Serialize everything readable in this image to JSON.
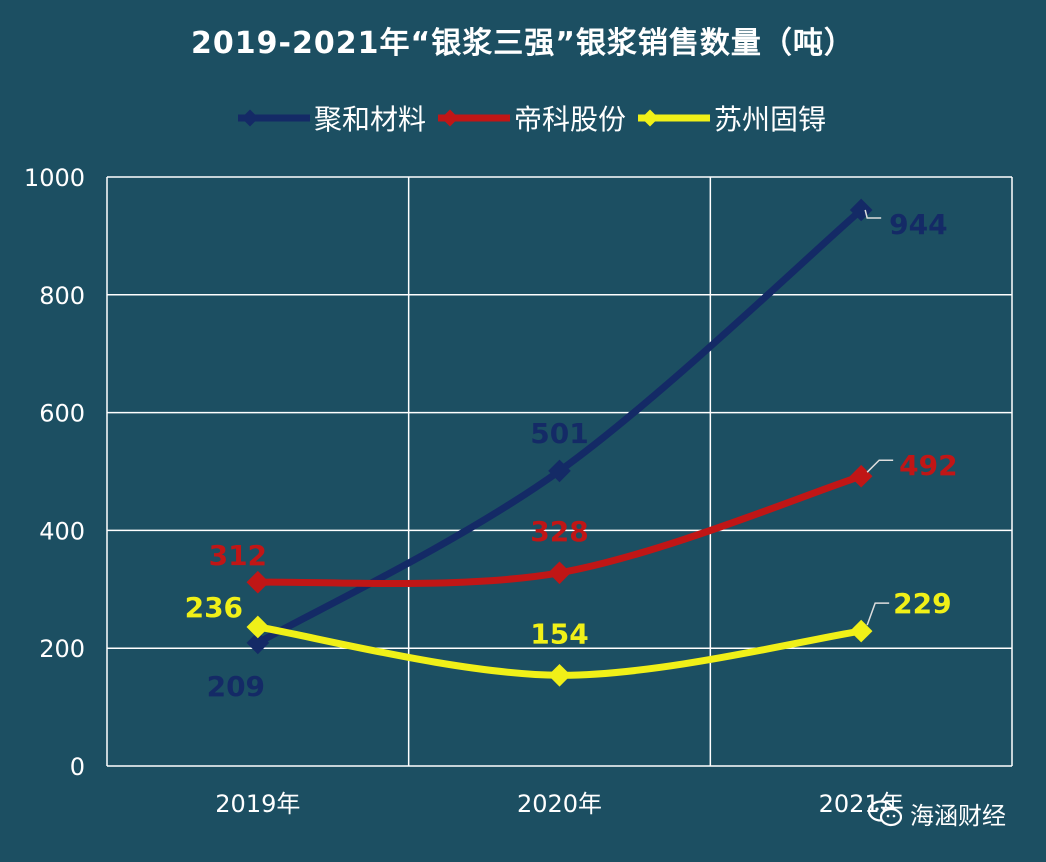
{
  "title": "2019-2021年“银浆三强”银浆销售数量（吨）",
  "legend": [
    {
      "label": "聚和材料",
      "color": "#142a66"
    },
    {
      "label": "帝科股份",
      "color": "#c01616"
    },
    {
      "label": "苏州固锝",
      "color": "#f0f018"
    }
  ],
  "watermark": {
    "text": "海涵财经",
    "icon": "wechat-icon"
  },
  "colors": {
    "background": "#1c4f62",
    "grid": "#ffffff"
  },
  "chart_data": {
    "type": "line",
    "title": "2019-2021年“银浆三强”银浆销售数量（吨）",
    "categories": [
      "2019年",
      "2020年",
      "2021年"
    ],
    "series": [
      {
        "name": "聚和材料",
        "values": [
          209,
          501,
          944
        ],
        "color": "#142a66"
      },
      {
        "name": "帝科股份",
        "values": [
          312,
          328,
          492
        ],
        "color": "#c01616"
      },
      {
        "name": "苏州固锝",
        "values": [
          236,
          154,
          229
        ],
        "color": "#f0f018"
      }
    ],
    "ylim": [
      0,
      1000
    ],
    "yticks": [
      "0",
      "200",
      "400",
      "600",
      "800",
      "1000"
    ],
    "grid": true,
    "legend_position": "top",
    "xlabel": "",
    "ylabel": ""
  }
}
